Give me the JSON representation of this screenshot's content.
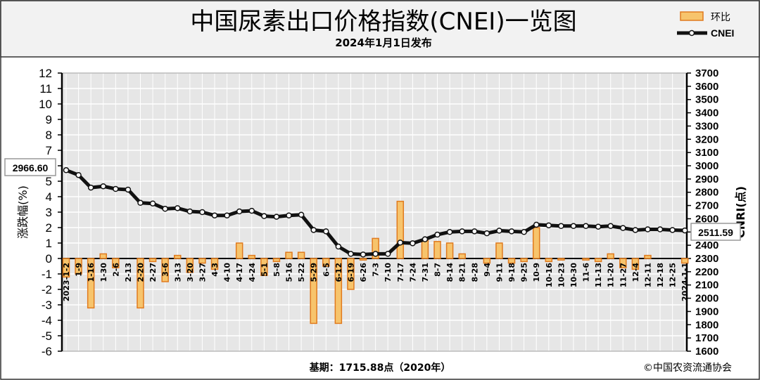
{
  "header": {
    "title": "中国尿素出口价格指数(CNEI)一览图",
    "date": "2024年1月1日发布"
  },
  "legend": {
    "bar_label": "环比",
    "line_label": "CNEI"
  },
  "footer": {
    "base": "基期：1715.88点（2020年）",
    "copyright": "©中国农资流通协会"
  },
  "colors": {
    "bar_fill": "#f7c46c",
    "bar_stroke": "#e07a1e",
    "line": "#111111",
    "plot_bg": "#e6e6e6",
    "gridline": "#ffffff"
  },
  "chart_data": {
    "type": "bar+line",
    "title": "中国尿素出口价格指数(CNEI)一览图",
    "subtitle": "2024年1月1日发布",
    "ylabel": "涨跌幅(%)",
    "ylabel_right": "CNRI(点)",
    "ylim": [
      -6,
      12
    ],
    "ylim_right": [
      1600,
      3700
    ],
    "yticks": [
      12,
      11,
      10,
      9,
      8,
      7,
      6,
      5,
      4,
      3,
      2,
      1,
      0,
      -1,
      -2,
      -3,
      -4,
      -5,
      -6
    ],
    "yticks_right": [
      3700,
      3600,
      3500,
      3400,
      3300,
      3200,
      3100,
      3000,
      2900,
      2800,
      2700,
      2600,
      2500,
      2400,
      2300,
      2200,
      2100,
      2000,
      1900,
      1800,
      1700,
      1600
    ],
    "grid": true,
    "legend_position": "top-right",
    "categories": [
      "2023-1-2",
      "1-9",
      "1-16",
      "1-30",
      "2-6",
      "2-13",
      "2-20",
      "2-27",
      "3-6",
      "3-13",
      "3-20",
      "3-27",
      "4-3",
      "4-10",
      "4-17",
      "4-24",
      "5-1",
      "5-8",
      "5-16",
      "5-22",
      "5-29",
      "6-5",
      "6-12",
      "6-19",
      "6-26",
      "7-3",
      "7-10",
      "7-17",
      "7-24",
      "7-31",
      "8-7",
      "8-14",
      "8-21",
      "8-28",
      "9-4",
      "9-11",
      "9-18",
      "9-25",
      "10-9",
      "10-16",
      "10-23",
      "10-30",
      "11-6",
      "11-13",
      "11-20",
      "11-27",
      "12-4",
      "12-11",
      "12-18",
      "12-25",
      "2024-1-1"
    ],
    "series": [
      {
        "name": "环比",
        "type": "bar",
        "axis": "left",
        "values": [
          -1.2,
          -1.0,
          -3.2,
          0.3,
          -0.6,
          0.0,
          -3.2,
          -0.2,
          -1.5,
          0.2,
          -0.9,
          -0.3,
          -0.7,
          0.0,
          1.0,
          0.2,
          -1.1,
          -0.2,
          0.4,
          0.4,
          -4.2,
          -0.5,
          -4.2,
          -2.0,
          -0.1,
          1.3,
          0.0,
          3.7,
          0.0,
          1.2,
          1.1,
          1.0,
          0.3,
          0.0,
          -0.3,
          1.0,
          -0.3,
          -0.2,
          2.0,
          -0.2,
          -0.1,
          0.0,
          -0.1,
          -0.2,
          0.3,
          -0.6,
          -0.7,
          0.2,
          0.0,
          0.0,
          -0.3
        ]
      },
      {
        "name": "CNEI",
        "type": "line",
        "axis": "right",
        "values": [
          2966.6,
          2930,
          2835,
          2845,
          2825,
          2820,
          2720,
          2715,
          2675,
          2680,
          2655,
          2650,
          2625,
          2625,
          2655,
          2660,
          2620,
          2615,
          2625,
          2630,
          2515,
          2505,
          2390,
          2335,
          2330,
          2335,
          2335,
          2420,
          2415,
          2445,
          2480,
          2500,
          2505,
          2505,
          2490,
          2510,
          2505,
          2500,
          2555,
          2550,
          2545,
          2545,
          2545,
          2540,
          2545,
          2530,
          2515,
          2520,
          2520,
          2515,
          2511.59
        ]
      }
    ],
    "annotations": [
      "2966.60",
      "2511.59"
    ]
  }
}
